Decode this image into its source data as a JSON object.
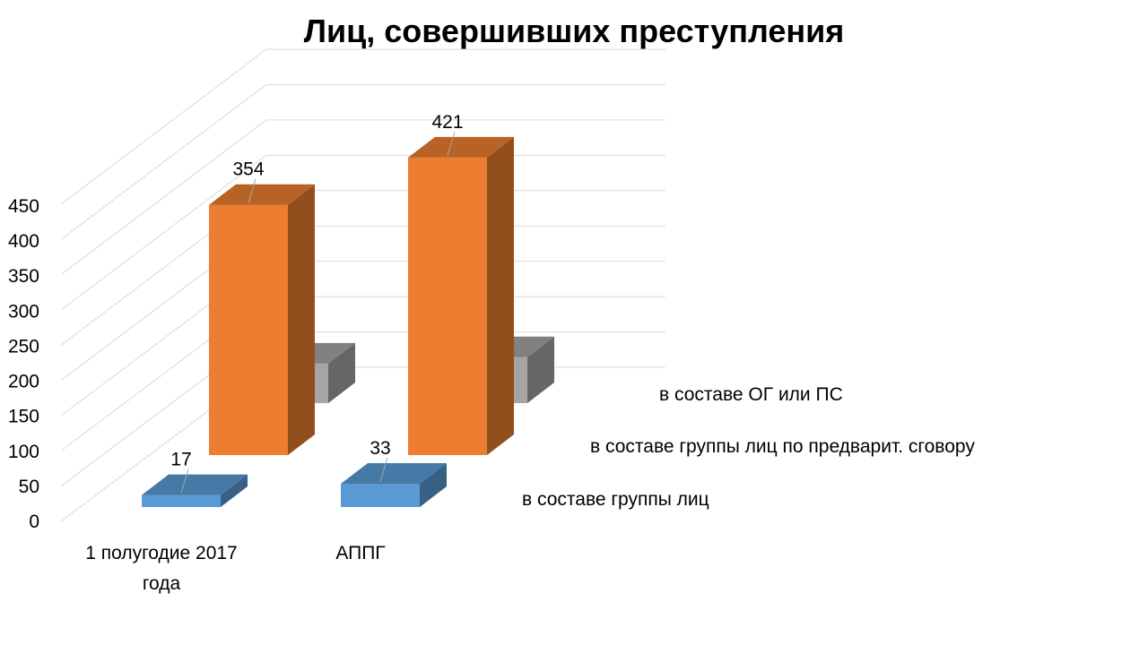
{
  "chart_data": {
    "type": "bar",
    "title": "Лиц, совершивших преступления",
    "categories": [
      "1 полугодие 2017 года",
      "АППГ"
    ],
    "category_lines": [
      [
        "1 полугодие 2017",
        "года"
      ],
      [
        "АППГ"
      ]
    ],
    "series": [
      {
        "name": "в составе группы лиц",
        "values": [
          17,
          33
        ],
        "color": "#5B9BD5"
      },
      {
        "name": "в составе группы лиц по предварит. сговору",
        "values": [
          354,
          421
        ],
        "color": "#ED7D31"
      },
      {
        "name": "в составе ОГ или ПС",
        "values": [
          56,
          65
        ],
        "color": "#A5A5A5"
      }
    ],
    "yticks": [
      0,
      50,
      100,
      150,
      200,
      250,
      300,
      350,
      400,
      450
    ],
    "ylim": [
      0,
      450
    ],
    "grid": true,
    "legend": "series axis labels on right (3D depth axis)"
  }
}
